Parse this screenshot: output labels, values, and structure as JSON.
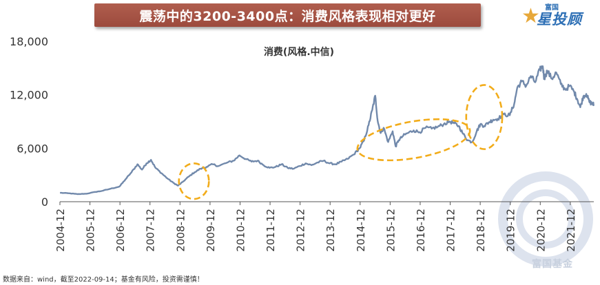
{
  "banner_title": "震荡中的3200-3400点：消费风格表现相对更好",
  "logo": {
    "top_text": "富国",
    "main_text": "星投顾",
    "star_glyph": "星"
  },
  "watermark": "富国基金",
  "footnote": "数据来自：wind，截至2022-09-14；基金有风险，投资需谨慎！",
  "colors": {
    "banner": "#a55446",
    "line": "#7189ab",
    "highlight": "#f2ac1a",
    "axis": "#555555"
  },
  "chart_data": {
    "type": "line",
    "title": "消费(风格.中信)",
    "xlabel": "",
    "ylabel": "",
    "ylim": [
      0,
      18000
    ],
    "yticks": [
      0,
      6000,
      12000,
      18000
    ],
    "ytick_labels": [
      "0",
      "6,000",
      "12,000",
      "18,000"
    ],
    "xlim": [
      2004.917,
      2022.7
    ],
    "xticks": [
      "2004-12",
      "2005-12",
      "2006-12",
      "2007-12",
      "2008-12",
      "2009-12",
      "2010-12",
      "2011-12",
      "2012-12",
      "2013-12",
      "2014-12",
      "2015-12",
      "2016-12",
      "2017-12",
      "2018-12",
      "2019-12",
      "2020-12",
      "2021-12"
    ],
    "grid": false,
    "legend": "none",
    "series": [
      {
        "name": "",
        "x": [
          2004.92,
          2005.2,
          2005.5,
          2005.8,
          2006.1,
          2006.3,
          2006.6,
          2006.9,
          2007.1,
          2007.3,
          2007.5,
          2007.65,
          2007.8,
          2007.95,
          2008.1,
          2008.3,
          2008.5,
          2008.7,
          2008.85,
          2009.0,
          2009.2,
          2009.4,
          2009.6,
          2009.8,
          2010.0,
          2010.2,
          2010.5,
          2010.7,
          2010.9,
          2011.1,
          2011.3,
          2011.5,
          2011.7,
          2011.9,
          2012.1,
          2012.3,
          2012.5,
          2012.7,
          2012.9,
          2013.1,
          2013.3,
          2013.5,
          2013.7,
          2013.9,
          2014.1,
          2014.3,
          2014.5,
          2014.7,
          2014.9,
          2015.05,
          2015.2,
          2015.32,
          2015.42,
          2015.5,
          2015.6,
          2015.7,
          2015.85,
          2016.0,
          2016.1,
          2016.2,
          2016.35,
          2016.5,
          2016.7,
          2016.9,
          2017.1,
          2017.3,
          2017.5,
          2017.7,
          2017.9,
          2018.05,
          2018.2,
          2018.35,
          2018.5,
          2018.65,
          2018.8,
          2018.92,
          2019.05,
          2019.2,
          2019.35,
          2019.5,
          2019.7,
          2019.9,
          2020.05,
          2020.15,
          2020.3,
          2020.45,
          2020.6,
          2020.75,
          2020.9,
          2021.0,
          2021.05,
          2021.15,
          2021.3,
          2021.45,
          2021.6,
          2021.75,
          2021.9,
          2022.05,
          2022.15,
          2022.25,
          2022.35,
          2022.45,
          2022.55,
          2022.65,
          2022.7
        ],
        "values": [
          1000,
          950,
          850,
          900,
          1100,
          1200,
          1450,
          1700,
          2500,
          3300,
          4200,
          3600,
          4300,
          4700,
          3800,
          3200,
          2600,
          2100,
          1800,
          2200,
          2800,
          3300,
          3700,
          3900,
          4200,
          4000,
          4400,
          4600,
          5200,
          4800,
          4500,
          4600,
          4100,
          3800,
          3900,
          4200,
          3800,
          3700,
          4000,
          4300,
          4100,
          4400,
          4600,
          4300,
          4200,
          4500,
          4800,
          5300,
          6000,
          6900,
          8600,
          10300,
          11900,
          9100,
          7700,
          8300,
          6700,
          7900,
          6200,
          6900,
          7400,
          7700,
          8000,
          7800,
          8300,
          8200,
          8400,
          8700,
          9000,
          8800,
          8500,
          7600,
          6900,
          6700,
          7900,
          8700,
          8500,
          8900,
          9200,
          9300,
          9800,
          9700,
          11000,
          12800,
          13500,
          13000,
          14100,
          13400,
          14800,
          15200,
          13800,
          14700,
          13800,
          14500,
          13200,
          12600,
          13000,
          12300,
          11500,
          10600,
          11800,
          12100,
          11200,
          11000,
          10900
        ]
      }
    ],
    "highlight_regions": [
      {
        "label": "",
        "x_center": 2009.38,
        "y_center": 2300,
        "x_halfwidth": 0.5,
        "y_halfwidth": 2000
      },
      {
        "label": "",
        "x_center": 2016.7,
        "y_center": 6950,
        "x_halfwidth": 1.9,
        "y_halfwidth": 2050
      },
      {
        "label": "",
        "x_center": 2019.05,
        "y_center": 9500,
        "x_halfwidth": 0.6,
        "y_halfwidth": 3600
      }
    ]
  }
}
